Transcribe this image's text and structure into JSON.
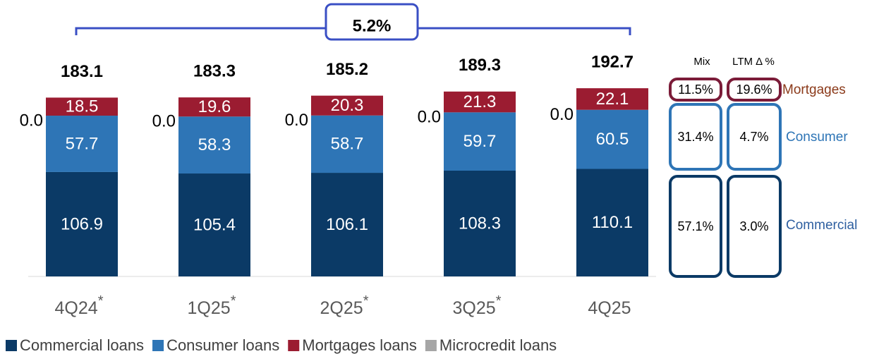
{
  "chart_data": {
    "type": "stacked-bar",
    "categories": [
      "4Q24",
      "1Q25",
      "2Q25",
      "3Q25",
      "4Q25"
    ],
    "category_marks": [
      "*",
      "*",
      "*",
      "*",
      null
    ],
    "series": [
      {
        "name": "Commercial loans",
        "color": "#0b3a66",
        "values": [
          106.9,
          105.4,
          106.1,
          108.3,
          110.1
        ]
      },
      {
        "name": "Consumer loans",
        "color": "#2e75b6",
        "values": [
          57.7,
          58.3,
          58.7,
          59.7,
          60.5
        ]
      },
      {
        "name": "Mortgages loans",
        "color": "#9b1c31",
        "values": [
          18.5,
          19.6,
          20.3,
          21.3,
          22.1
        ]
      },
      {
        "name": "Microcredit loans",
        "color": "#a6a6a6",
        "values": [
          0,
          0,
          0,
          0,
          0
        ],
        "value_labels": [
          "0.0",
          "0.0",
          "0.0",
          "0.0",
          "0.0"
        ]
      }
    ],
    "totals": [
      183.1,
      183.3,
      185.2,
      189.3,
      192.7
    ],
    "growth_annotation": "5.2%",
    "ylim": [
      0,
      200
    ],
    "side_table": {
      "headers": [
        "Mix",
        "LTM Δ %"
      ],
      "rows": [
        {
          "label": "Mortgages",
          "mix": "11.5%",
          "ltm": "19.6%",
          "color": "#7b1b38",
          "label_color": "#8b3a1a"
        },
        {
          "label": "Consumer",
          "mix": "31.4%",
          "ltm": "4.7%",
          "color": "#2e75b6",
          "label_color": "#2e75b6"
        },
        {
          "label": "Commercial",
          "mix": "57.1%",
          "ltm": "3.0%",
          "color": "#0b3a66",
          "label_color": "#2e5fa0"
        }
      ]
    }
  }
}
